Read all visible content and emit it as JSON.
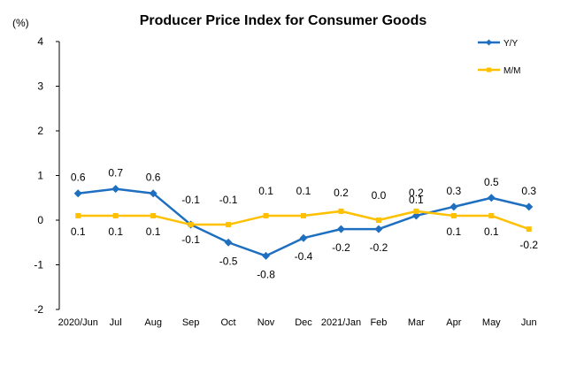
{
  "chart_data": {
    "type": "line",
    "title": "Producer Price Index for Consumer Goods",
    "ylabel": "(%)",
    "xlabel": "",
    "ylim": [
      -2,
      4
    ],
    "yticks": [
      -2,
      -1,
      0,
      1,
      2,
      3,
      4
    ],
    "categories": [
      "2020/Jun",
      "Jul",
      "Aug",
      "Sep",
      "Oct",
      "Nov",
      "Dec",
      "2021/Jan",
      "Feb",
      "Mar",
      "Apr",
      "May",
      "Jun"
    ],
    "series": [
      {
        "name": "Y/Y",
        "color": "#1f6fc0",
        "marker": "diamond",
        "values": [
          0.6,
          0.7,
          0.6,
          -0.1,
          -0.5,
          -0.8,
          -0.4,
          -0.2,
          -0.2,
          0.1,
          0.3,
          0.5,
          0.3
        ],
        "labels": [
          "0.6",
          "0.7",
          "0.6",
          "-0.1",
          "-0.5",
          "-0.8",
          "-0.4",
          "-0.2",
          "-0.2",
          "0.1",
          "0.3",
          "0.5",
          "0.3"
        ]
      },
      {
        "name": "M/M",
        "color": "#ffc000",
        "marker": "square",
        "values": [
          0.1,
          0.1,
          0.1,
          -0.1,
          -0.1,
          0.1,
          0.1,
          0.2,
          0.0,
          0.2,
          0.1,
          0.1,
          -0.2
        ],
        "labels": [
          "0.1",
          "0.1",
          "0.1",
          "-0.1",
          "-0.1",
          "0.1",
          "0.1",
          "0.2",
          "0.0",
          "0.2",
          "0.1",
          "0.1",
          "-0.2"
        ]
      }
    ],
    "grid": false,
    "legend": "top-right"
  }
}
